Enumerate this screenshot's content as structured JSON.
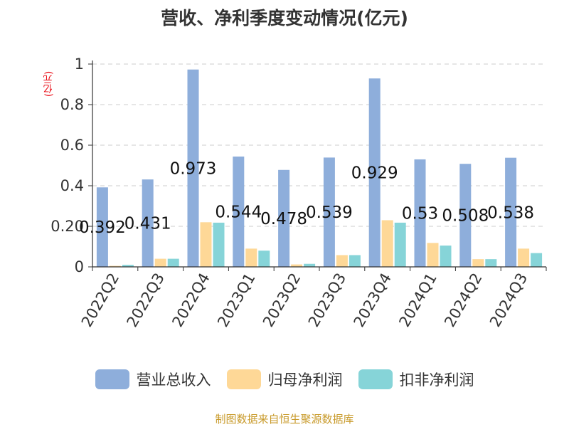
{
  "chart_data": {
    "type": "bar",
    "title": "营收、净利季度变动情况(亿元)",
    "ylabel": "(亿元)",
    "ylim": [
      0,
      1
    ],
    "yticks": [
      "0",
      "0.20",
      "0.4",
      "0.6",
      "0.8",
      "1"
    ],
    "grid": true,
    "legend_position": "bottom",
    "categories": [
      "2022Q2",
      "2022Q3",
      "2022Q4",
      "2023Q1",
      "2023Q2",
      "2023Q3",
      "2023Q4",
      "2024Q1",
      "2024Q2",
      "2024Q3"
    ],
    "series": [
      {
        "name": "营业总收入",
        "color": "#8eaedb",
        "values": [
          0.392,
          0.431,
          0.973,
          0.544,
          0.478,
          0.539,
          0.929,
          0.53,
          0.508,
          0.538
        ],
        "data_labels": [
          "0.392",
          "0.431",
          "0.973",
          "0.544",
          "0.478",
          "0.539",
          "0.929",
          "0.53",
          "0.508",
          "0.538"
        ]
      },
      {
        "name": "归母净利润",
        "color": "#fed897",
        "values": [
          0.005,
          0.04,
          0.22,
          0.09,
          0.012,
          0.058,
          0.23,
          0.118,
          0.038,
          0.09
        ]
      },
      {
        "name": "扣非净利润",
        "color": "#86d4d8",
        "values": [
          0.01,
          0.04,
          0.218,
          0.08,
          0.015,
          0.058,
          0.218,
          0.105,
          0.038,
          0.068
        ]
      }
    ]
  },
  "source_text": "制图数据来自恒生聚源数据库",
  "source_color": "#c89a2a"
}
